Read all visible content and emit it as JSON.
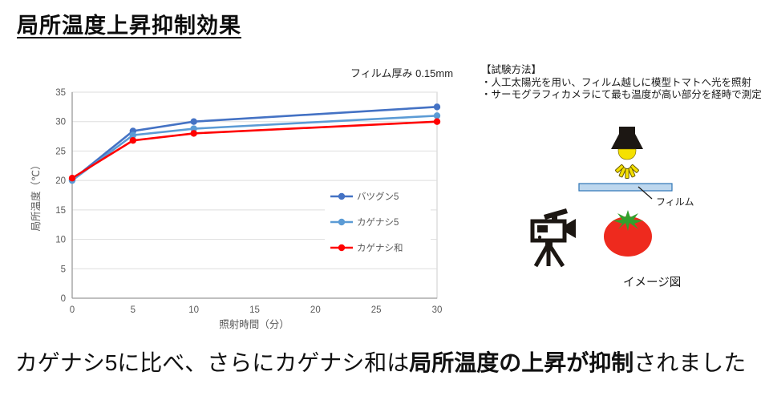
{
  "page": {
    "title": "局所温度上昇抑制効果",
    "background": "#FFFFFF"
  },
  "chart_data": {
    "type": "line",
    "note": "フィルム厚み 0.15mm",
    "xlabel": "照射時間（分）",
    "ylabel": "局所温度（℃）",
    "x": [
      0,
      5,
      10,
      30
    ],
    "x_ticks": [
      0,
      5,
      10,
      15,
      20,
      25,
      30
    ],
    "y_ticks": [
      0,
      5,
      10,
      15,
      20,
      25,
      30,
      35
    ],
    "xlim": [
      0,
      30
    ],
    "ylim": [
      0,
      35
    ],
    "grid": true,
    "legend_position": "inside-right-middle",
    "axis_color": "#9B9B9B",
    "grid_color": "#DEDEDE",
    "tick_label_color": "#595959",
    "series": [
      {
        "name": "バツグン5",
        "color": "#4472C4",
        "values": [
          20.1,
          28.4,
          30.0,
          32.5
        ]
      },
      {
        "name": "カゲナシ5",
        "color": "#5B9BD5",
        "values": [
          20.0,
          27.7,
          28.8,
          31.0
        ]
      },
      {
        "name": "カゲナシ和",
        "color": "#FF0000",
        "values": [
          20.4,
          26.8,
          28.0,
          30.0
        ]
      }
    ]
  },
  "test_method": {
    "heading": "【試験方法】",
    "line1": "・人工太陽光を用い、フィルム越しに模型トマトへ光を照射",
    "line2": "・サーモグラフィカメラにて最も温度が高い部分を経時で測定"
  },
  "diagram": {
    "film_label": "フィルム",
    "caption": "イメージ図",
    "icons": [
      "lamp-icon",
      "film-bar",
      "video-camera-icon",
      "tomato-icon"
    ],
    "colors": {
      "film_fill": "#BDD7EE",
      "film_border": "#2E75B6",
      "lamp_yellow": "#F5E100",
      "ray_outline": "#6B5B00",
      "tomato_red": "#EE2A1E",
      "calyx_green": "#33A02C",
      "icon_black": "#1C1713"
    }
  },
  "conclusion": {
    "text_before": "カゲナシ5に比べ、さらにカゲナシ和は",
    "highlight": "局所温度の上昇が抑制",
    "text_after": "されました",
    "highlight_color": "#FF0000"
  }
}
